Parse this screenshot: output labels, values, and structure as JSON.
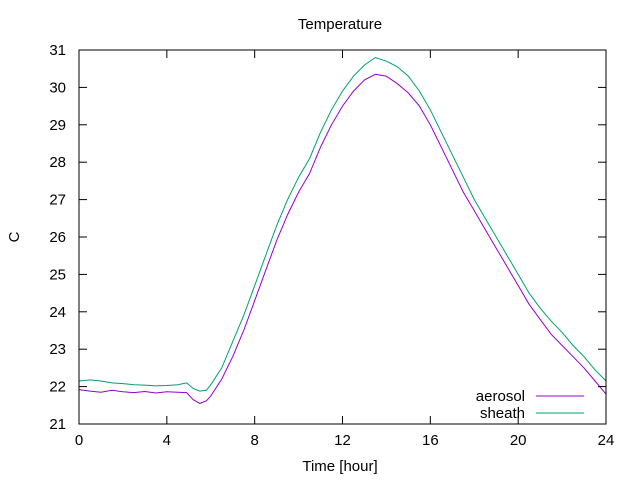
{
  "chart_data": {
    "type": "line",
    "title": "Temperature",
    "xlabel": "Time [hour]",
    "ylabel": "C",
    "xlim": [
      0,
      24
    ],
    "ylim": [
      21,
      31
    ],
    "xticks": [
      0,
      4,
      8,
      12,
      16,
      20,
      24
    ],
    "yticks": [
      21,
      22,
      23,
      24,
      25,
      26,
      27,
      28,
      29,
      30,
      31
    ],
    "grid": false,
    "legend_position": "bottom-right",
    "series": [
      {
        "name": "aerosol",
        "color": "#9400D3",
        "x": [
          0,
          0.5,
          1,
          1.5,
          2,
          2.5,
          3,
          3.5,
          4,
          4.5,
          4.9,
          5.2,
          5.5,
          5.8,
          6,
          6.5,
          7,
          7.5,
          8,
          8.5,
          9,
          9.5,
          10,
          10.5,
          11,
          11.5,
          12,
          12.5,
          13,
          13.5,
          14,
          14.5,
          15,
          15.5,
          16,
          16.5,
          17,
          17.5,
          18,
          18.5,
          19,
          19.5,
          20,
          20.5,
          21,
          21.5,
          22,
          22.5,
          23,
          23.5,
          24
        ],
        "y": [
          21.92,
          21.88,
          21.85,
          21.9,
          21.86,
          21.84,
          21.87,
          21.83,
          21.86,
          21.85,
          21.84,
          21.65,
          21.55,
          21.62,
          21.75,
          22.2,
          22.8,
          23.5,
          24.3,
          25.1,
          25.9,
          26.6,
          27.2,
          27.7,
          28.4,
          29.0,
          29.5,
          29.9,
          30.2,
          30.35,
          30.3,
          30.1,
          29.85,
          29.5,
          29.0,
          28.4,
          27.8,
          27.2,
          26.7,
          26.2,
          25.7,
          25.2,
          24.7,
          24.2,
          23.8,
          23.4,
          23.1,
          22.8,
          22.5,
          22.15,
          21.8
        ]
      },
      {
        "name": "sheath",
        "color": "#009E73",
        "x": [
          0,
          0.5,
          1,
          1.5,
          2,
          2.5,
          3,
          3.5,
          4,
          4.5,
          4.9,
          5.2,
          5.5,
          5.8,
          6,
          6.5,
          7,
          7.5,
          8,
          8.5,
          9,
          9.5,
          10,
          10.5,
          11,
          11.5,
          12,
          12.5,
          13,
          13.5,
          14,
          14.5,
          15,
          15.5,
          16,
          16.5,
          17,
          17.5,
          18,
          18.5,
          19,
          19.5,
          20,
          20.5,
          21,
          21.5,
          22,
          22.5,
          23,
          23.5,
          24
        ],
        "y": [
          22.15,
          22.18,
          22.15,
          22.1,
          22.08,
          22.05,
          22.04,
          22.02,
          22.03,
          22.05,
          22.1,
          21.95,
          21.88,
          21.9,
          22.05,
          22.5,
          23.2,
          23.9,
          24.7,
          25.5,
          26.3,
          27.0,
          27.6,
          28.1,
          28.8,
          29.4,
          29.9,
          30.3,
          30.6,
          30.8,
          30.7,
          30.55,
          30.3,
          29.9,
          29.4,
          28.8,
          28.2,
          27.6,
          27.0,
          26.5,
          26.0,
          25.5,
          25.0,
          24.5,
          24.1,
          23.75,
          23.45,
          23.1,
          22.8,
          22.45,
          22.15
        ]
      }
    ]
  }
}
